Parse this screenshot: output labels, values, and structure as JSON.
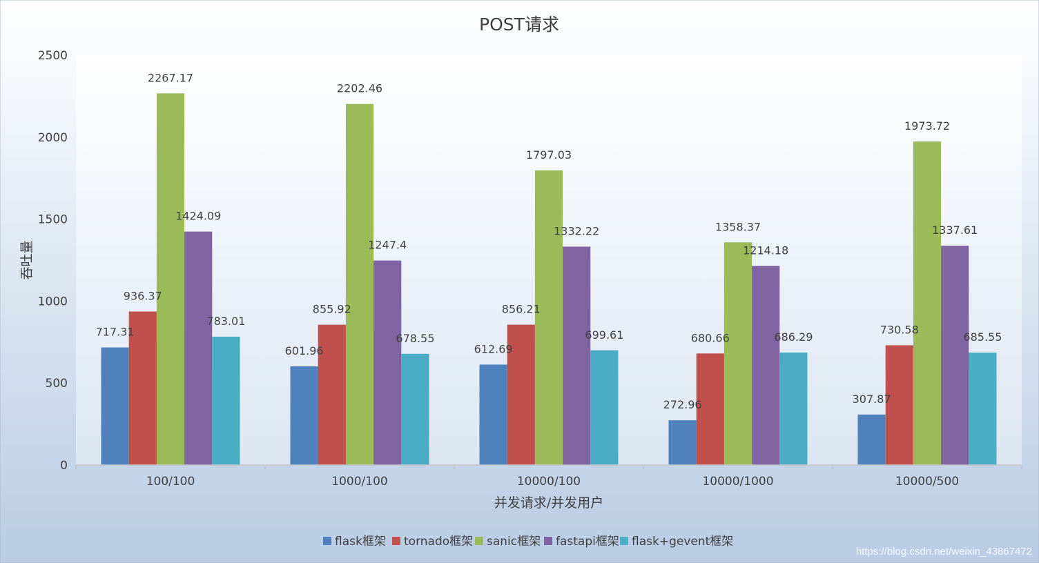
{
  "chart_data": {
    "type": "bar",
    "title": "POST请求",
    "xlabel": "并发请求/并发用户",
    "ylabel": "吞吐量",
    "ylim": [
      0,
      2500
    ],
    "yticks": [
      0,
      500,
      1000,
      1500,
      2000,
      2500
    ],
    "categories": [
      "100/100",
      "1000/100",
      "10000/100",
      "10000/1000",
      "10000/500"
    ],
    "series": [
      {
        "name": "flask框架",
        "color": "#4F81BD",
        "values": [
          717.31,
          601.96,
          612.69,
          272.96,
          307.87
        ],
        "labels": [
          "717.31",
          "601.96",
          "612.69",
          "272.96",
          "307.87"
        ]
      },
      {
        "name": "tornado框架",
        "color": "#C0504D",
        "values": [
          936.37,
          855.92,
          856.21,
          680.66,
          730.58
        ],
        "labels": [
          "936.37",
          "855.92",
          "856.21",
          "680.66",
          "730.58"
        ]
      },
      {
        "name": "sanic框架",
        "color": "#9BBB59",
        "values": [
          2267.17,
          2202.46,
          1797.03,
          1358.37,
          1973.72
        ],
        "labels": [
          "2267.17",
          "2202.46",
          "1797.03",
          "1358.37",
          "1973.72"
        ]
      },
      {
        "name": "fastapi框架",
        "color": "#8064A2",
        "values": [
          1424.09,
          1247.4,
          1332.22,
          1214.18,
          1337.61
        ],
        "labels": [
          "1424.09",
          "1247.4",
          "1332.22",
          "1214.18",
          "1337.61"
        ]
      },
      {
        "name": "flask+gevent框架",
        "color": "#4BACC6",
        "values": [
          783.01,
          678.55,
          699.61,
          686.29,
          685.55
        ],
        "labels": [
          "783.01",
          "678.55",
          "699.61",
          "686.29",
          "685.55"
        ]
      }
    ],
    "legend_position": "bottom",
    "grid": false
  },
  "watermark": "https://blog.csdn.net/weixin_43867472"
}
